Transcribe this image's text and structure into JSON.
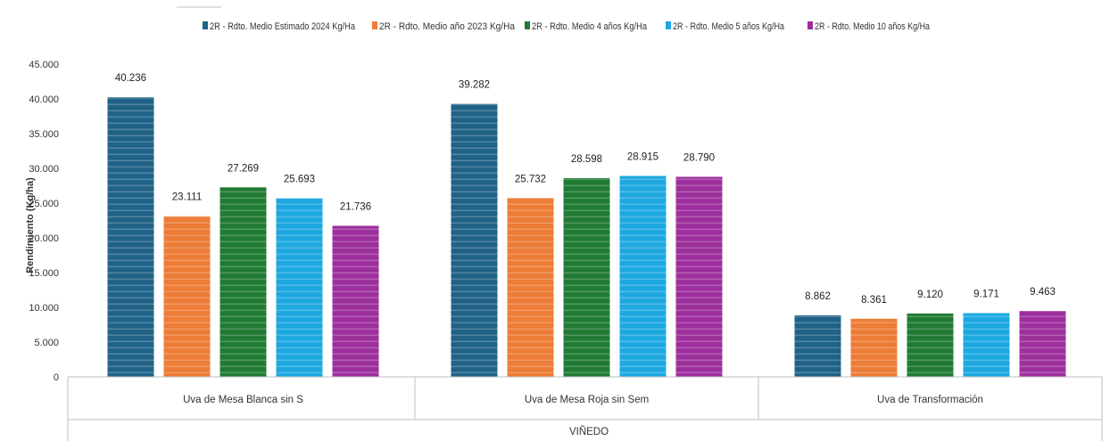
{
  "chart_data": {
    "type": "bar",
    "categories": [
      "Uva de Mesa Blanca sin S",
      "Uva de Mesa Roja sin Sem",
      "Uva de Transformación"
    ],
    "series": [
      {
        "name": "2R - Rdto. Medio Estimado 2024 Kg/Ha",
        "values": [
          40236,
          39282,
          8862
        ],
        "labels": [
          "40.236",
          "39.282",
          "8.862"
        ],
        "color": "#1f6286"
      },
      {
        "name": "2R - Rdto. Medio año 2023 Kg/Ha",
        "values": [
          23111,
          25732,
          8361
        ],
        "labels": [
          "23.111",
          "25.732",
          "8.361"
        ],
        "color": "#ec7c36"
      },
      {
        "name": "2R - Rdto. Medio 4 años Kg/Ha",
        "values": [
          27269,
          28598,
          9120
        ],
        "labels": [
          "27.269",
          "28.598",
          "9.120"
        ],
        "color": "#207a32"
      },
      {
        "name": "2R - Rdto. Medio 5 años Kg/Ha",
        "values": [
          25693,
          28915,
          9171
        ],
        "labels": [
          "25.693",
          "28.915",
          "9.171"
        ],
        "color": "#1ea8e0"
      },
      {
        "name": "2R - Rdto. Medio 10 años Kg/Ha",
        "values": [
          21736,
          28790,
          9463
        ],
        "labels": [
          "21.736",
          "28.790",
          "9.463"
        ],
        "color": "#9c2f9c"
      }
    ],
    "ylabel": "Rendimiento (Kg/ha)",
    "xlabel": "VIÑEDO",
    "ylim": [
      0,
      45000
    ],
    "yticks": [
      0,
      5000,
      10000,
      15000,
      20000,
      25000,
      30000,
      35000,
      40000,
      45000
    ],
    "ytick_labels": [
      "0",
      "5.000",
      "10.000",
      "15.000",
      "20.000",
      "25.000",
      "30.000",
      "35.000",
      "40.000",
      "45.000"
    ],
    "legend_position": "top",
    "grid": false
  }
}
